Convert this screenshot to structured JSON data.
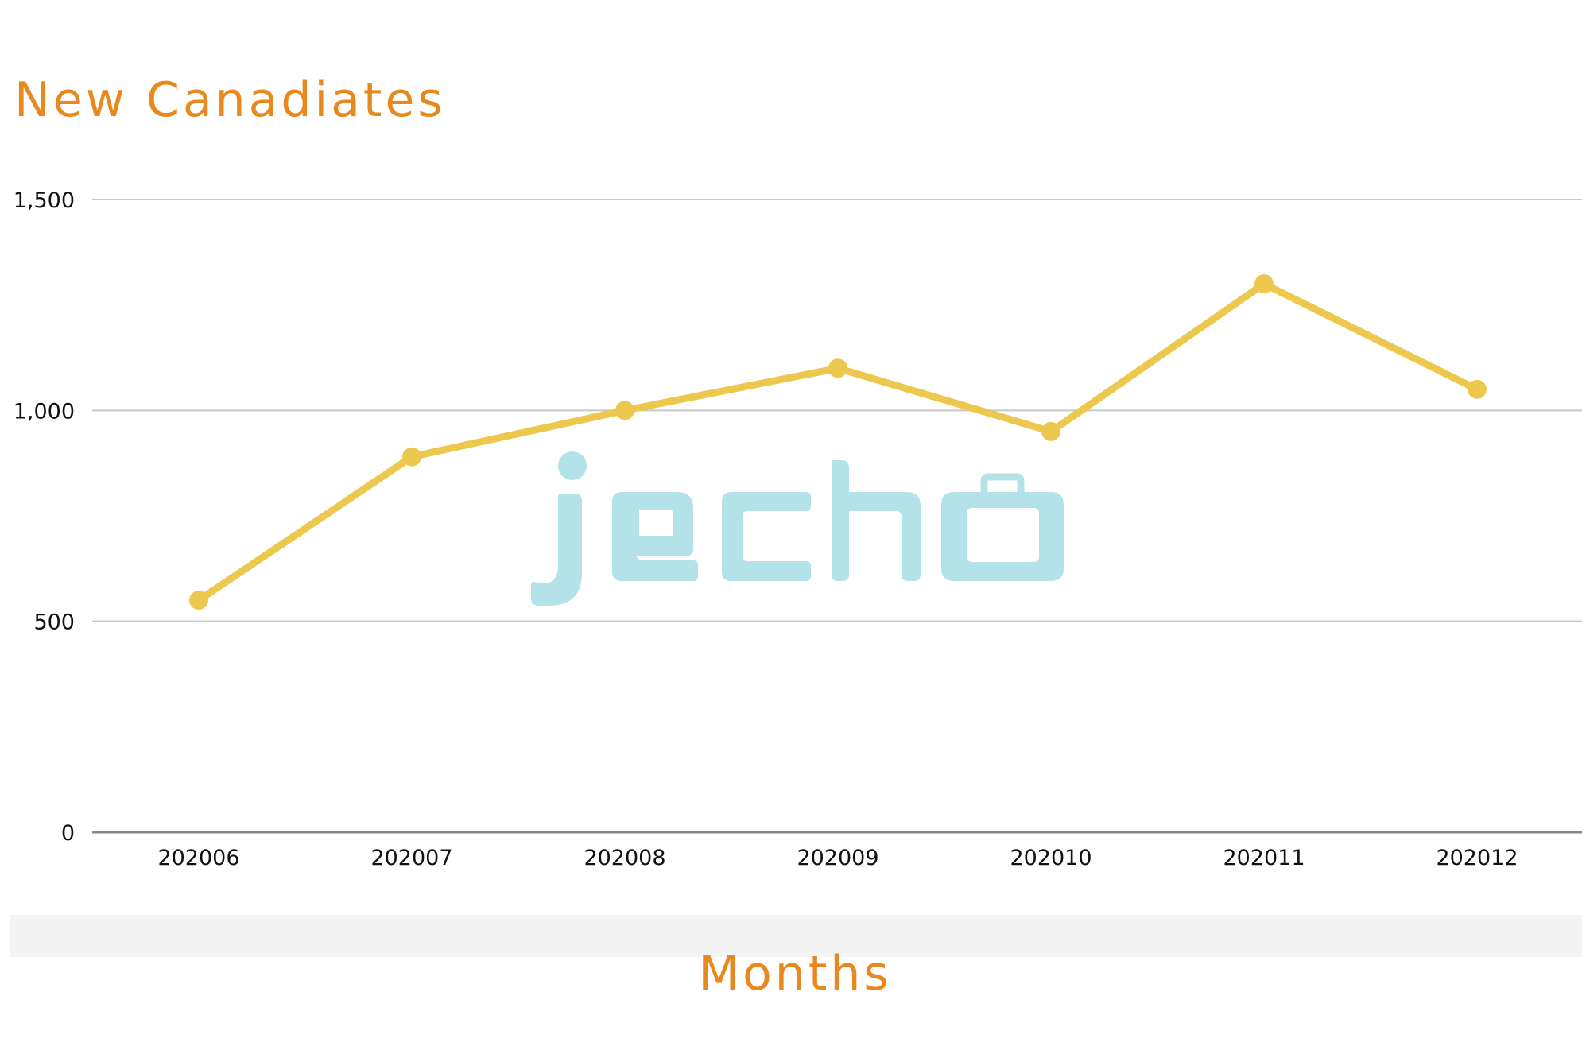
{
  "chart_data": {
    "type": "line",
    "title": "New Canadiates",
    "xlabel": "Months",
    "ylabel": "",
    "categories": [
      "202006",
      "202007",
      "202008",
      "202009",
      "202010",
      "202011",
      "202012"
    ],
    "series": [
      {
        "values": [
          550,
          890,
          1000,
          1100,
          950,
          1300,
          1050
        ]
      }
    ],
    "ylim": [
      0,
      1500
    ],
    "yticks": [
      0,
      500,
      1000,
      1500
    ],
    "ytick_labels": [
      "0",
      "500",
      "1,000",
      "1,500"
    ],
    "grid": true,
    "legend": "none"
  },
  "watermark": {
    "text": "jecho",
    "icon": "briefcase-icon"
  },
  "colors": {
    "title": "#E8891F",
    "line": "#EDC84E",
    "grid": "#C8C8C8",
    "axis": "#888888",
    "watermark": "#B3E2E8",
    "xlabel_band": "#F4F4F4"
  }
}
